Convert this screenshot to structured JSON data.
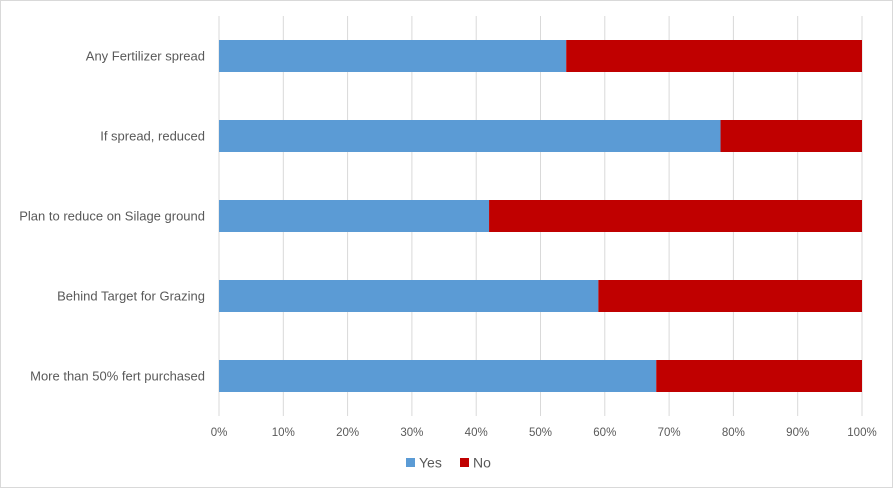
{
  "chart_data": {
    "type": "bar",
    "orientation": "horizontal",
    "stacked": "100%",
    "categories": [
      "Any Fertilizer spread",
      "If spread, reduced",
      "Plan to reduce on Silage ground",
      "Behind Target for Grazing",
      "More than 50% fert purchased"
    ],
    "series": [
      {
        "name": "Yes",
        "color": "#5b9bd5",
        "values": [
          54,
          78,
          42,
          59,
          68
        ]
      },
      {
        "name": "No",
        "color": "#c00000",
        "values": [
          46,
          22,
          58,
          41,
          32
        ]
      }
    ],
    "x_ticks": [
      "0%",
      "10%",
      "20%",
      "30%",
      "40%",
      "50%",
      "60%",
      "70%",
      "80%",
      "90%",
      "100%"
    ],
    "xlim": [
      0,
      100
    ],
    "grid": true,
    "legend_position": "bottom"
  }
}
